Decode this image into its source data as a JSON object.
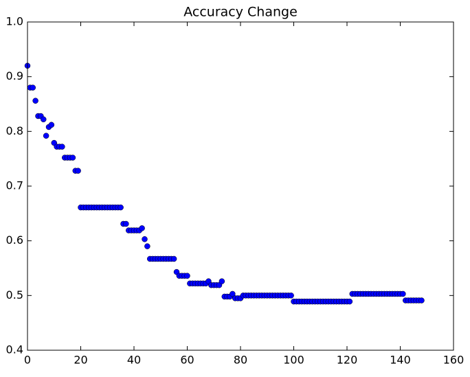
{
  "chart_data": {
    "type": "scatter",
    "title": "Accuracy Change",
    "x": [
      0,
      1,
      2,
      3,
      4,
      5,
      6,
      7,
      8,
      9,
      10,
      11,
      12,
      13,
      14,
      15,
      16,
      17,
      18,
      19,
      20,
      21,
      22,
      23,
      24,
      25,
      26,
      27,
      28,
      29,
      30,
      31,
      32,
      33,
      34,
      35,
      36,
      37,
      38,
      39,
      40,
      41,
      42,
      43,
      44,
      45,
      46,
      47,
      48,
      49,
      50,
      51,
      52,
      53,
      54,
      55,
      56,
      57,
      58,
      59,
      60,
      61,
      62,
      63,
      64,
      65,
      66,
      67,
      68,
      69,
      70,
      71,
      72,
      73,
      74,
      75,
      76,
      77,
      78,
      79,
      80,
      81,
      82,
      83,
      84,
      85,
      86,
      87,
      88,
      89,
      90,
      91,
      92,
      93,
      94,
      95,
      96,
      97,
      98,
      99,
      100,
      101,
      102,
      103,
      104,
      105,
      106,
      107,
      108,
      109,
      110,
      111,
      112,
      113,
      114,
      115,
      116,
      117,
      118,
      119,
      120,
      121,
      122,
      123,
      124,
      125,
      126,
      127,
      128,
      129,
      130,
      131,
      132,
      133,
      134,
      135,
      136,
      137,
      138,
      139,
      140,
      141,
      142,
      143,
      144,
      145,
      146,
      147,
      148
    ],
    "values": [
      0.92,
      0.88,
      0.88,
      0.856,
      0.828,
      0.828,
      0.822,
      0.792,
      0.808,
      0.812,
      0.779,
      0.772,
      0.772,
      0.772,
      0.752,
      0.752,
      0.752,
      0.752,
      0.728,
      0.728,
      0.661,
      0.661,
      0.661,
      0.661,
      0.661,
      0.661,
      0.661,
      0.661,
      0.661,
      0.661,
      0.661,
      0.661,
      0.661,
      0.661,
      0.661,
      0.661,
      0.631,
      0.631,
      0.619,
      0.619,
      0.619,
      0.619,
      0.619,
      0.623,
      0.603,
      0.59,
      0.567,
      0.567,
      0.567,
      0.567,
      0.567,
      0.567,
      0.567,
      0.567,
      0.567,
      0.567,
      0.543,
      0.536,
      0.536,
      0.536,
      0.536,
      0.522,
      0.522,
      0.522,
      0.522,
      0.522,
      0.522,
      0.522,
      0.526,
      0.519,
      0.519,
      0.519,
      0.519,
      0.526,
      0.498,
      0.498,
      0.498,
      0.503,
      0.495,
      0.495,
      0.495,
      0.5,
      0.5,
      0.5,
      0.5,
      0.5,
      0.5,
      0.5,
      0.5,
      0.5,
      0.5,
      0.5,
      0.5,
      0.5,
      0.5,
      0.5,
      0.5,
      0.5,
      0.5,
      0.5,
      0.489,
      0.489,
      0.489,
      0.489,
      0.489,
      0.489,
      0.489,
      0.489,
      0.489,
      0.489,
      0.489,
      0.489,
      0.489,
      0.489,
      0.489,
      0.489,
      0.489,
      0.489,
      0.489,
      0.489,
      0.489,
      0.489,
      0.503,
      0.503,
      0.503,
      0.503,
      0.503,
      0.503,
      0.503,
      0.503,
      0.503,
      0.503,
      0.503,
      0.503,
      0.503,
      0.503,
      0.503,
      0.503,
      0.503,
      0.503,
      0.503,
      0.503,
      0.491,
      0.491,
      0.491,
      0.491,
      0.491,
      0.491,
      0.491
    ],
    "color": "#0000ff",
    "xlim": [
      0,
      160
    ],
    "xticks": [
      0,
      20,
      40,
      60,
      80,
      100,
      120,
      140,
      160
    ],
    "ylim": [
      0.4,
      1.0
    ],
    "yticks": [
      0.4,
      0.5,
      0.6,
      0.7,
      0.8,
      0.9,
      {
        "value": 1,
        "label": "1.0"
      }
    ]
  }
}
